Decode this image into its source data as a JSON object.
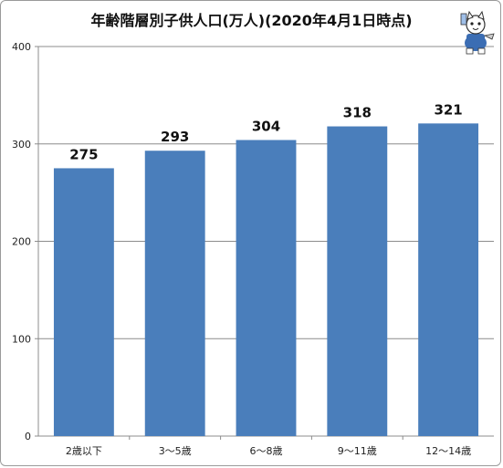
{
  "chart_data": {
    "type": "bar",
    "title": "年齢階層別子供人口(万人)(2020年4月1日時点)",
    "categories": [
      "2歳以下",
      "3〜5歳",
      "6〜8歳",
      "9〜11歳",
      "12〜14歳"
    ],
    "values": [
      275,
      293,
      304,
      318,
      321
    ],
    "data_labels": [
      "275",
      "293",
      "304",
      "318",
      "321"
    ],
    "xlabel": "",
    "ylabel": "",
    "ylim": [
      0,
      400
    ],
    "yticks": [
      "0",
      "100",
      "200",
      "300",
      "400"
    ],
    "grid": true,
    "legend": "none",
    "bar_color": "#4a7ebb"
  },
  "mascot": {
    "icon": "cat-mascot-icon"
  }
}
